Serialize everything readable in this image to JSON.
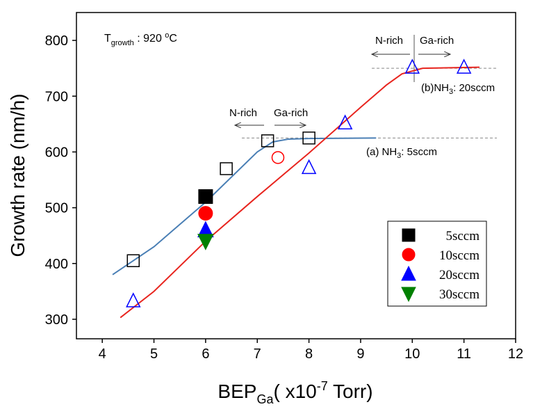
{
  "chart_data": {
    "type": "scatter",
    "y_label": "Growth rate (nm/h)",
    "x_label": [
      "BEP",
      "Ga",
      "( x10",
      "-7",
      " Torr)"
    ],
    "growth_temp": [
      "T",
      "growth",
      " : 920 ",
      "o",
      "C"
    ],
    "label_a": [
      "(a) NH",
      "3",
      ": 5sccm"
    ],
    "label_b": [
      "(b)NH",
      "3",
      ": 20sccm"
    ],
    "regime_labels": [
      "N-rich",
      "Ga-rich",
      "N-rich",
      "Ga-rich"
    ],
    "xlim": [
      3.5,
      12
    ],
    "ylim": [
      265,
      850
    ],
    "xticks": [
      4,
      5,
      6,
      7,
      8,
      9,
      10,
      11,
      12
    ],
    "yticks": [
      300,
      400,
      500,
      600,
      700,
      800
    ],
    "legend": "lower right",
    "reference_lines": [
      625,
      750
    ],
    "series": [
      {
        "name": "5sccm",
        "color": "#000000",
        "marker": "square",
        "filled": true,
        "x": [
          6
        ],
        "values": [
          520
        ]
      },
      {
        "name": "10sccm",
        "color": "#ff0000",
        "marker": "circle",
        "filled": true,
        "x": [
          6
        ],
        "values": [
          490
        ]
      },
      {
        "name": "20sccm",
        "color": "#0000ff",
        "marker": "triangle-up",
        "filled": true,
        "x": [
          6
        ],
        "values": [
          460
        ]
      },
      {
        "name": "30sccm",
        "color": "#008000",
        "marker": "triangle-down",
        "filled": true,
        "x": [
          6
        ],
        "values": [
          440
        ]
      },
      {
        "color": "#000000",
        "marker": "square",
        "filled": false,
        "x": [
          4.6,
          6.4,
          7.2,
          8
        ],
        "values": [
          405,
          570,
          620,
          625
        ]
      },
      {
        "color": "#ff0000",
        "marker": "circle",
        "filled": false,
        "x": [
          7.4
        ],
        "values": [
          590
        ]
      },
      {
        "color": "#0000ff",
        "marker": "triangle-up",
        "filled": false,
        "x": [
          4.6,
          8,
          8.7,
          10,
          11
        ],
        "values": [
          333,
          572,
          652,
          752,
          752
        ]
      }
    ],
    "fits": [
      {
        "color": "#4a7fb5",
        "x": [
          4.2,
          5,
          6,
          6.5,
          7,
          7.3,
          7.6,
          8,
          9.3
        ],
        "values": [
          380,
          430,
          510,
          555,
          600,
          618,
          623,
          624,
          625
        ]
      },
      {
        "color": "#e8251f",
        "x": [
          4.35,
          5,
          6,
          7,
          8,
          9,
          9.5,
          9.8,
          10.2,
          11.3
        ],
        "values": [
          303,
          350,
          440,
          520,
          598,
          680,
          720,
          740,
          750,
          752
        ]
      }
    ]
  }
}
